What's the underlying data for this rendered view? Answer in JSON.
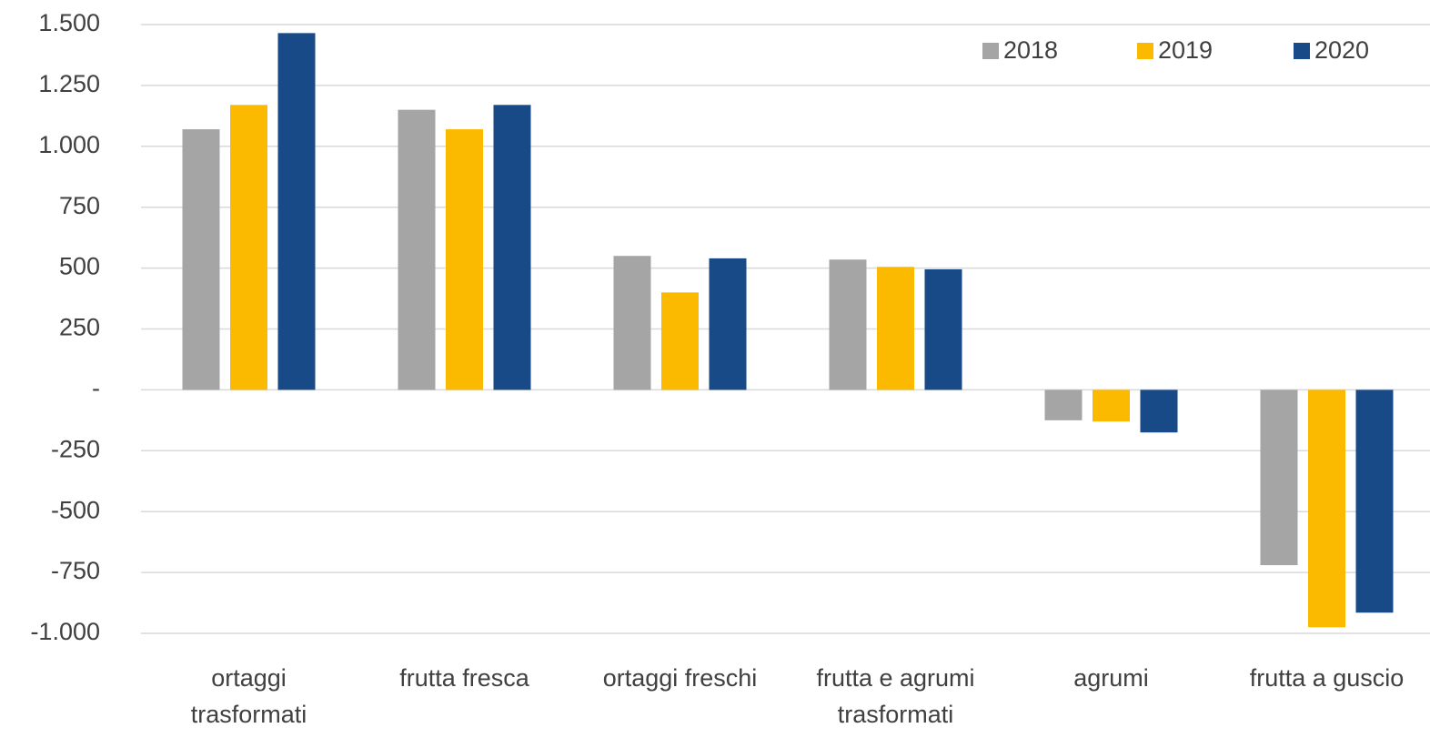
{
  "chart_data": {
    "type": "bar",
    "categories": [
      "ortaggi trasformati",
      "frutta fresca",
      "ortaggi freschi",
      "frutta e agrumi trasformati",
      "agrumi",
      "frutta a guscio"
    ],
    "series": [
      {
        "name": "2018",
        "color": "#a5a5a5",
        "values": [
          1070,
          1150,
          550,
          535,
          -125,
          -720
        ]
      },
      {
        "name": "2019",
        "color": "#fbb900",
        "values": [
          1170,
          1070,
          400,
          505,
          -130,
          -975
        ]
      },
      {
        "name": "2020",
        "color": "#174a86",
        "values": [
          1465,
          1170,
          540,
          495,
          -175,
          -915
        ]
      }
    ],
    "ylim": [
      -1000,
      1500
    ],
    "yticks": [
      {
        "value": 1500,
        "label": "1.500"
      },
      {
        "value": 1250,
        "label": "1.250"
      },
      {
        "value": 1000,
        "label": "1.000"
      },
      750,
      500,
      250,
      {
        "value": 0,
        "label": "-"
      },
      -250,
      -500,
      -750,
      {
        "value": -1000,
        "label": "-1.000"
      }
    ],
    "grid": true,
    "legend": "top-right"
  }
}
